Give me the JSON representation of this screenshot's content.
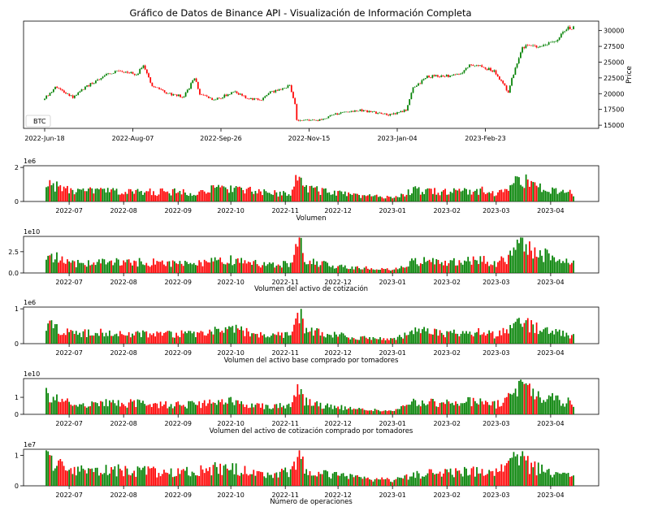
{
  "title": "Gráfico de Datos de Binance API - Visualización de Información Completa",
  "colors": {
    "up": "#008000",
    "down": "#ff0000",
    "axis": "#000000"
  },
  "chart_data": [
    {
      "type": "candlestick",
      "legend": "BTC",
      "legend_position": "lower-left",
      "ylabel": "Price",
      "y_axis_side": "right",
      "ylim": [
        14500,
        31500
      ],
      "yticks": [
        15000,
        17500,
        20000,
        22500,
        25000,
        27500,
        30000
      ],
      "ytick_labels": [
        "15000",
        "17500",
        "20000",
        "22500",
        "25000",
        "27500",
        "30000"
      ],
      "x_range": [
        "2022-06-18",
        "2023-04-14"
      ],
      "xticks": [
        "2022-Jun-18",
        "2022-Aug-07",
        "2022-Sep-26",
        "2022-Nov-15",
        "2023-Jan-04",
        "2023-Feb-23"
      ],
      "anchors": [
        [
          "2022-06-18",
          19000
        ],
        [
          "2022-06-25",
          21000
        ],
        [
          "2022-07-05",
          19500
        ],
        [
          "2022-07-15",
          21500
        ],
        [
          "2022-07-22",
          22800
        ],
        [
          "2022-07-31",
          23800
        ],
        [
          "2022-08-10",
          23000
        ],
        [
          "2022-08-14",
          24500
        ],
        [
          "2022-08-19",
          21300
        ],
        [
          "2022-08-28",
          20000
        ],
        [
          "2022-09-06",
          19500
        ],
        [
          "2022-09-12",
          22500
        ],
        [
          "2022-09-15",
          20000
        ],
        [
          "2022-09-23",
          19000
        ],
        [
          "2022-10-05",
          20300
        ],
        [
          "2022-10-13",
          19200
        ],
        [
          "2022-10-20",
          19100
        ],
        [
          "2022-10-25",
          20200
        ],
        [
          "2022-11-05",
          21300
        ],
        [
          "2022-11-08",
          18500
        ],
        [
          "2022-11-09",
          15800
        ],
        [
          "2022-11-21",
          15800
        ],
        [
          "2022-12-05",
          17100
        ],
        [
          "2022-12-15",
          17400
        ],
        [
          "2022-12-31",
          16600
        ],
        [
          "2023-01-10",
          17400
        ],
        [
          "2023-01-14",
          20800
        ],
        [
          "2023-01-22",
          22700
        ],
        [
          "2023-02-09",
          22900
        ],
        [
          "2023-02-16",
          24700
        ],
        [
          "2023-02-22",
          24200
        ],
        [
          "2023-03-01",
          23600
        ],
        [
          "2023-03-09",
          20300
        ],
        [
          "2023-03-13",
          24200
        ],
        [
          "2023-03-17",
          27400
        ],
        [
          "2023-03-24",
          27500
        ],
        [
          "2023-04-05",
          28200
        ],
        [
          "2023-04-11",
          30300
        ],
        [
          "2023-04-14",
          30500
        ]
      ]
    },
    {
      "type": "bar",
      "xlabel": "Volumen",
      "multiplier": "1e6",
      "scale": 1000000,
      "ylim": [
        0,
        2.1
      ],
      "yticks": [
        0,
        2
      ],
      "ytick_labels": [
        "0",
        "2"
      ],
      "xticks": [
        "2022-07",
        "2022-08",
        "2022-09",
        "2022-10",
        "2022-11",
        "2022-12",
        "2023-01",
        "2023-02",
        "2023-03",
        "2023-04"
      ],
      "anchors": [
        [
          "2022-06-18",
          1.2
        ],
        [
          "2022-06-25",
          0.9
        ],
        [
          "2022-07-05",
          0.6
        ],
        [
          "2022-07-15",
          0.7
        ],
        [
          "2022-08-01",
          0.6
        ],
        [
          "2022-08-20",
          0.6
        ],
        [
          "2022-09-10",
          0.6
        ],
        [
          "2022-09-20",
          0.75
        ],
        [
          "2022-10-01",
          0.9
        ],
        [
          "2022-10-15",
          0.6
        ],
        [
          "2022-10-25",
          0.5
        ],
        [
          "2022-11-05",
          0.6
        ],
        [
          "2022-11-09",
          2.0
        ],
        [
          "2022-11-12",
          0.9
        ],
        [
          "2022-11-25",
          0.6
        ],
        [
          "2022-12-10",
          0.4
        ],
        [
          "2023-01-01",
          0.25
        ],
        [
          "2023-01-14",
          0.7
        ],
        [
          "2023-02-01",
          0.6
        ],
        [
          "2023-02-20",
          0.7
        ],
        [
          "2023-03-01",
          0.5
        ],
        [
          "2023-03-10",
          1.0
        ],
        [
          "2023-03-14",
          1.5
        ],
        [
          "2023-03-20",
          1.1
        ],
        [
          "2023-04-01",
          0.7
        ],
        [
          "2023-04-14",
          0.5
        ]
      ]
    },
    {
      "type": "bar",
      "xlabel": "Volumen del activo de cotización",
      "multiplier": "1e10",
      "scale": 10000000000,
      "ylim": [
        0,
        4.3
      ],
      "yticks": [
        0,
        2.5
      ],
      "ytick_labels": [
        "0.0",
        "2.5"
      ],
      "xticks": [
        "2022-07",
        "2022-08",
        "2022-09",
        "2022-10",
        "2022-11",
        "2022-12",
        "2023-01",
        "2023-02",
        "2023-03",
        "2023-04"
      ],
      "anchors": [
        [
          "2022-06-18",
          2.4
        ],
        [
          "2022-06-25",
          1.8
        ],
        [
          "2022-07-05",
          1.2
        ],
        [
          "2022-07-15",
          1.4
        ],
        [
          "2022-08-01",
          1.4
        ],
        [
          "2022-08-20",
          1.3
        ],
        [
          "2022-09-10",
          1.2
        ],
        [
          "2022-09-20",
          1.4
        ],
        [
          "2022-10-01",
          1.6
        ],
        [
          "2022-10-15",
          1.2
        ],
        [
          "2022-10-25",
          1.0
        ],
        [
          "2022-11-05",
          1.3
        ],
        [
          "2022-11-09",
          4.0
        ],
        [
          "2022-11-12",
          1.7
        ],
        [
          "2022-11-25",
          1.0
        ],
        [
          "2022-12-10",
          0.7
        ],
        [
          "2023-01-01",
          0.4
        ],
        [
          "2023-01-14",
          1.5
        ],
        [
          "2023-02-01",
          1.4
        ],
        [
          "2023-02-20",
          1.7
        ],
        [
          "2023-03-01",
          1.2
        ],
        [
          "2023-03-10",
          2.2
        ],
        [
          "2023-03-14",
          3.8
        ],
        [
          "2023-03-20",
          3.0
        ],
        [
          "2023-04-01",
          2.0
        ],
        [
          "2023-04-14",
          1.4
        ]
      ]
    },
    {
      "type": "bar",
      "xlabel": "Volumen del activo base comprado por tomadores",
      "multiplier": "1e6",
      "scale": 1000000,
      "ylim": [
        0,
        1.05
      ],
      "yticks": [
        0,
        1
      ],
      "ytick_labels": [
        "0",
        "1"
      ],
      "xticks": [
        "2022-07",
        "2022-08",
        "2022-09",
        "2022-10",
        "2022-11",
        "2022-12",
        "2023-01",
        "2023-02",
        "2023-03",
        "2023-04"
      ],
      "anchors": [
        [
          "2022-06-18",
          0.62
        ],
        [
          "2022-06-25",
          0.45
        ],
        [
          "2022-07-05",
          0.3
        ],
        [
          "2022-07-15",
          0.35
        ],
        [
          "2022-08-01",
          0.3
        ],
        [
          "2022-08-20",
          0.3
        ],
        [
          "2022-09-10",
          0.3
        ],
        [
          "2022-09-20",
          0.37
        ],
        [
          "2022-10-01",
          0.45
        ],
        [
          "2022-10-15",
          0.3
        ],
        [
          "2022-10-25",
          0.25
        ],
        [
          "2022-11-05",
          0.3
        ],
        [
          "2022-11-09",
          1.0
        ],
        [
          "2022-11-12",
          0.45
        ],
        [
          "2022-11-25",
          0.3
        ],
        [
          "2022-12-10",
          0.2
        ],
        [
          "2023-01-01",
          0.12
        ],
        [
          "2023-01-14",
          0.4
        ],
        [
          "2023-02-01",
          0.3
        ],
        [
          "2023-02-20",
          0.35
        ],
        [
          "2023-03-01",
          0.25
        ],
        [
          "2023-03-10",
          0.5
        ],
        [
          "2023-03-14",
          0.78
        ],
        [
          "2023-03-20",
          0.55
        ],
        [
          "2023-04-01",
          0.35
        ],
        [
          "2023-04-14",
          0.25
        ]
      ]
    },
    {
      "type": "bar",
      "xlabel": "Volumen del activo de cotización comprado por tomadores",
      "multiplier": "1e10",
      "scale": 10000000000,
      "ylim": [
        0,
        2.1
      ],
      "yticks": [
        0,
        1
      ],
      "ytick_labels": [
        "0",
        "1"
      ],
      "xticks": [
        "2022-07",
        "2022-08",
        "2022-09",
        "2022-10",
        "2022-11",
        "2022-12",
        "2023-01",
        "2023-02",
        "2023-03",
        "2023-04"
      ],
      "anchors": [
        [
          "2022-06-18",
          1.2
        ],
        [
          "2022-06-25",
          0.9
        ],
        [
          "2022-07-05",
          0.6
        ],
        [
          "2022-07-15",
          0.7
        ],
        [
          "2022-08-01",
          0.7
        ],
        [
          "2022-08-20",
          0.65
        ],
        [
          "2022-09-10",
          0.6
        ],
        [
          "2022-09-20",
          0.7
        ],
        [
          "2022-10-01",
          0.8
        ],
        [
          "2022-10-15",
          0.6
        ],
        [
          "2022-10-25",
          0.5
        ],
        [
          "2022-11-05",
          0.65
        ],
        [
          "2022-11-09",
          1.9
        ],
        [
          "2022-11-12",
          0.85
        ],
        [
          "2022-11-25",
          0.5
        ],
        [
          "2022-12-10",
          0.35
        ],
        [
          "2023-01-01",
          0.2
        ],
        [
          "2023-01-14",
          0.75
        ],
        [
          "2023-02-01",
          0.7
        ],
        [
          "2023-02-20",
          0.85
        ],
        [
          "2023-03-01",
          0.6
        ],
        [
          "2023-03-10",
          1.1
        ],
        [
          "2023-03-14",
          1.9
        ],
        [
          "2023-03-20",
          1.5
        ],
        [
          "2023-04-01",
          1.0
        ],
        [
          "2023-04-14",
          0.7
        ]
      ]
    },
    {
      "type": "bar",
      "xlabel": "Número de operaciones",
      "multiplier": "1e7",
      "scale": 10000000,
      "ylim": [
        0,
        1.2
      ],
      "yticks": [
        0,
        1
      ],
      "ytick_labels": [
        "0",
        "1"
      ],
      "xticks": [
        "2022-07",
        "2022-08",
        "2022-09",
        "2022-10",
        "2022-11",
        "2022-12",
        "2023-01",
        "2023-02",
        "2023-03",
        "2023-04"
      ],
      "anchors": [
        [
          "2022-06-18",
          1.0
        ],
        [
          "2022-06-25",
          0.7
        ],
        [
          "2022-07-05",
          0.5
        ],
        [
          "2022-07-15",
          0.6
        ],
        [
          "2022-08-01",
          0.55
        ],
        [
          "2022-08-20",
          0.5
        ],
        [
          "2022-09-10",
          0.5
        ],
        [
          "2022-09-20",
          0.6
        ],
        [
          "2022-10-01",
          0.65
        ],
        [
          "2022-10-15",
          0.5
        ],
        [
          "2022-10-25",
          0.4
        ],
        [
          "2022-11-05",
          0.5
        ],
        [
          "2022-11-09",
          1.1
        ],
        [
          "2022-11-12",
          0.6
        ],
        [
          "2022-11-25",
          0.4
        ],
        [
          "2022-12-10",
          0.3
        ],
        [
          "2023-01-01",
          0.2
        ],
        [
          "2023-01-14",
          0.4
        ],
        [
          "2023-02-01",
          0.45
        ],
        [
          "2023-02-20",
          0.5
        ],
        [
          "2023-03-01",
          0.45
        ],
        [
          "2023-03-10",
          0.8
        ],
        [
          "2023-03-14",
          1.1
        ],
        [
          "2023-03-20",
          0.7
        ],
        [
          "2023-04-01",
          0.45
        ],
        [
          "2023-04-14",
          0.35
        ]
      ]
    }
  ]
}
